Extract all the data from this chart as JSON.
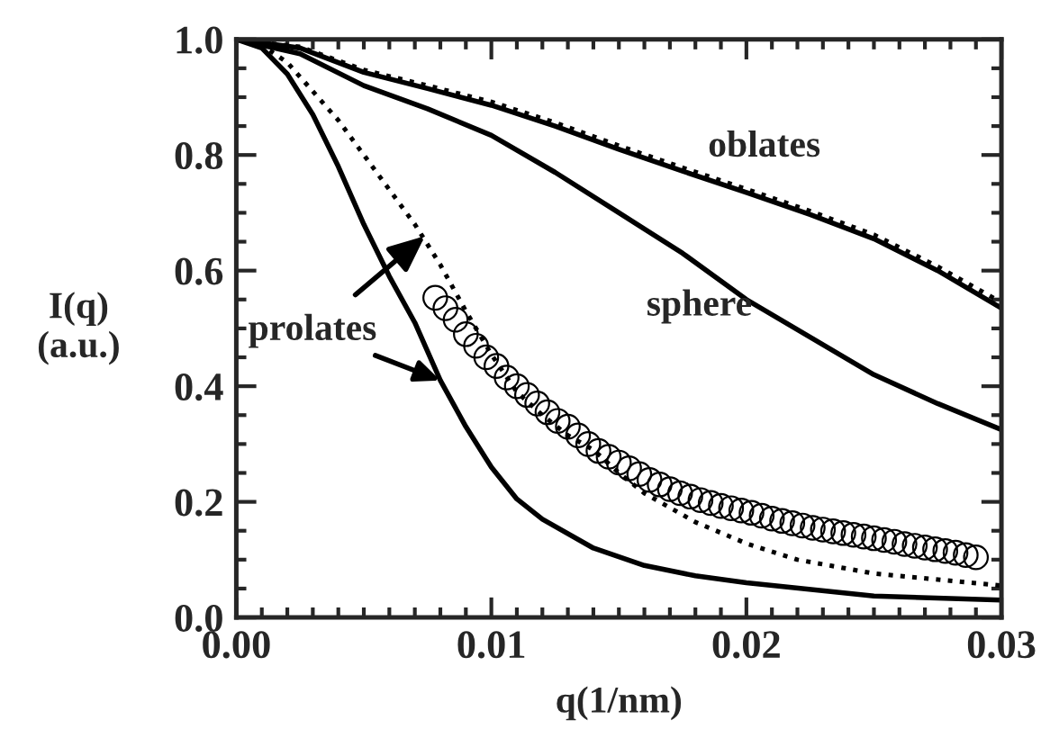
{
  "chart_data": {
    "type": "line",
    "xlabel": "q(1/nm)",
    "ylabel": "I(q)\n(a.u.)",
    "xlim": [
      0.0,
      0.03
    ],
    "ylim": [
      0.0,
      1.0
    ],
    "xticks": [
      {
        "value": 0.0,
        "label": "0.00"
      },
      0.01,
      0.02,
      0.03
    ],
    "yticks": [
      {
        "value": 0.0,
        "label": "0.0"
      },
      0.2,
      0.4,
      0.6,
      0.8,
      {
        "value": 1.0,
        "label": "1.0"
      }
    ],
    "grid": false,
    "series": [
      {
        "color": "#000000",
        "line_style": "solid",
        "marker": "none",
        "x": [
          0,
          0.0025,
          0.005,
          0.0075,
          0.01,
          0.0125,
          0.015,
          0.0175,
          0.02,
          0.0225,
          0.025,
          0.0275,
          0.03
        ],
        "values": [
          1.0,
          0.985,
          0.943,
          0.915,
          0.886,
          0.85,
          0.81,
          0.772,
          0.735,
          0.697,
          0.655,
          0.6,
          0.535
        ]
      },
      {
        "color": "#000000",
        "line_style": "dotted",
        "marker": "none",
        "x": [
          0,
          0.0025,
          0.005,
          0.0075,
          0.01,
          0.0125,
          0.015,
          0.0175,
          0.02,
          0.0225,
          0.025,
          0.0275,
          0.03
        ],
        "values": [
          1.0,
          0.987,
          0.947,
          0.92,
          0.892,
          0.856,
          0.816,
          0.778,
          0.741,
          0.703,
          0.662,
          0.607,
          0.545
        ]
      },
      {
        "color": "#000000",
        "line_style": "solid",
        "marker": "none",
        "x": [
          0,
          0.0025,
          0.005,
          0.0075,
          0.01,
          0.0125,
          0.015,
          0.0175,
          0.02,
          0.0225,
          0.025,
          0.0275,
          0.03
        ],
        "values": [
          1.0,
          0.975,
          0.92,
          0.88,
          0.834,
          0.77,
          0.7,
          0.63,
          0.55,
          0.485,
          0.42,
          0.37,
          0.325
        ]
      },
      {
        "color": "#000000",
        "line_style": "solid",
        "marker": "none",
        "x": [
          0,
          0.001,
          0.002,
          0.003,
          0.004,
          0.005,
          0.006,
          0.007,
          0.008,
          0.009,
          0.01,
          0.011,
          0.012,
          0.014,
          0.016,
          0.018,
          0.02,
          0.025,
          0.03
        ],
        "values": [
          1.0,
          0.985,
          0.94,
          0.87,
          0.78,
          0.68,
          0.59,
          0.51,
          0.41,
          0.33,
          0.26,
          0.205,
          0.17,
          0.12,
          0.09,
          0.072,
          0.06,
          0.037,
          0.03
        ]
      },
      {
        "color": "#000000",
        "line_style": "dotted",
        "marker": "none",
        "x": [
          0,
          0.001,
          0.002,
          0.004,
          0.006,
          0.007,
          0.008,
          0.009,
          0.01,
          0.011,
          0.012,
          0.013,
          0.014,
          0.015,
          0.016,
          0.018,
          0.02,
          0.022,
          0.025,
          0.03
        ],
        "values": [
          1.0,
          0.99,
          0.96,
          0.86,
          0.74,
          0.68,
          0.61,
          0.53,
          0.455,
          0.39,
          0.35,
          0.315,
          0.29,
          0.25,
          0.215,
          0.165,
          0.128,
          0.1,
          0.076,
          0.055
        ]
      },
      {
        "type": "scatter",
        "color": "#000000",
        "marker": "circle",
        "x": [
          0.0078,
          0.0082,
          0.0086,
          0.009,
          0.0094,
          0.0098,
          0.0102,
          0.0106,
          0.011,
          0.0114,
          0.0118,
          0.0122,
          0.0126,
          0.013,
          0.0134,
          0.0138,
          0.0142,
          0.0146,
          0.015,
          0.0154,
          0.0158,
          0.0162,
          0.0166,
          0.017,
          0.0174,
          0.0178,
          0.0182,
          0.0186,
          0.019,
          0.0194,
          0.0198,
          0.0202,
          0.0206,
          0.021,
          0.0214,
          0.0218,
          0.0222,
          0.0226,
          0.023,
          0.0234,
          0.0238,
          0.0242,
          0.0246,
          0.025,
          0.0254,
          0.0258,
          0.0262,
          0.0266,
          0.027,
          0.0274,
          0.0278,
          0.0282,
          0.0286,
          0.029
        ],
        "values": [
          0.553,
          0.535,
          0.515,
          0.49,
          0.47,
          0.45,
          0.435,
          0.415,
          0.4,
          0.385,
          0.37,
          0.355,
          0.34,
          0.33,
          0.315,
          0.3,
          0.288,
          0.278,
          0.268,
          0.258,
          0.248,
          0.238,
          0.23,
          0.222,
          0.215,
          0.209,
          0.203,
          0.198,
          0.193,
          0.189,
          0.185,
          0.181,
          0.176,
          0.171,
          0.167,
          0.163,
          0.159,
          0.155,
          0.152,
          0.149,
          0.146,
          0.143,
          0.14,
          0.137,
          0.134,
          0.131,
          0.127,
          0.124,
          0.121,
          0.118,
          0.115,
          0.112,
          0.108,
          0.104
        ]
      }
    ],
    "annotations": [
      "oblates",
      "sphere",
      {
        "text": "prolates",
        "x": 0.0074,
        "y": 0.66
      }
    ]
  }
}
